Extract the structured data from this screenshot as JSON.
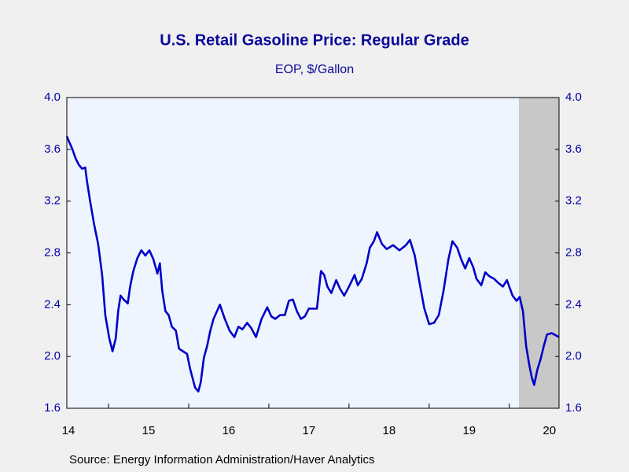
{
  "chart_data": {
    "type": "line",
    "title": "U.S. Retail Gasoline Price: Regular Grade",
    "subtitle": "EOP, $/Gallon",
    "source": "Source:  Energy Information Administration/Haver Analytics",
    "color": "#0000c8",
    "x": [
      2014.48,
      2014.55,
      2014.59,
      2014.63,
      2014.67,
      2014.71,
      2014.73,
      2014.77,
      2014.82,
      2014.87,
      2014.92,
      2014.96,
      2015.01,
      2015.05,
      2015.09,
      2015.12,
      2015.15,
      2015.19,
      2015.24,
      2015.27,
      2015.31,
      2015.36,
      2015.41,
      2015.46,
      2015.51,
      2015.56,
      2015.61,
      2015.64,
      2015.67,
      2015.71,
      2015.75,
      2015.79,
      2015.84,
      2015.88,
      2015.93,
      2015.98,
      2016.02,
      2016.08,
      2016.12,
      2016.15,
      2016.19,
      2016.23,
      2016.27,
      2016.31,
      2016.39,
      2016.45,
      2016.51,
      2016.57,
      2016.62,
      2016.67,
      2016.73,
      2016.78,
      2016.84,
      2016.91,
      2016.98,
      2017.03,
      2017.08,
      2017.14,
      2017.2,
      2017.25,
      2017.3,
      2017.35,
      2017.4,
      2017.45,
      2017.5,
      2017.6,
      2017.65,
      2017.69,
      2017.73,
      2017.78,
      2017.84,
      2017.89,
      2017.94,
      2018.0,
      2018.07,
      2018.11,
      2018.16,
      2018.22,
      2018.26,
      2018.31,
      2018.35,
      2018.41,
      2018.47,
      2018.55,
      2018.63,
      2018.71,
      2018.76,
      2018.82,
      2018.88,
      2018.94,
      2019.0,
      2019.06,
      2019.12,
      2019.18,
      2019.24,
      2019.29,
      2019.35,
      2019.4,
      2019.45,
      2019.5,
      2019.55,
      2019.59,
      2019.65,
      2019.7,
      2019.75,
      2019.81,
      2019.86,
      2019.92,
      2019.97,
      2020.04,
      2020.09,
      2020.13,
      2020.17,
      2020.21,
      2020.25,
      2020.28,
      2020.31,
      2020.35,
      2020.39,
      2020.43,
      2020.47,
      2020.53,
      2020.59,
      2020.62
    ],
    "values": [
      3.7,
      3.6,
      3.53,
      3.48,
      3.45,
      3.46,
      3.36,
      3.2,
      3.02,
      2.87,
      2.63,
      2.32,
      2.14,
      2.04,
      2.14,
      2.35,
      2.47,
      2.44,
      2.41,
      2.54,
      2.66,
      2.76,
      2.82,
      2.78,
      2.82,
      2.75,
      2.64,
      2.72,
      2.51,
      2.35,
      2.32,
      2.23,
      2.2,
      2.06,
      2.04,
      2.02,
      1.9,
      1.76,
      1.73,
      1.8,
      1.99,
      2.08,
      2.2,
      2.29,
      2.4,
      2.29,
      2.2,
      2.15,
      2.23,
      2.21,
      2.26,
      2.22,
      2.15,
      2.29,
      2.38,
      2.31,
      2.29,
      2.32,
      2.32,
      2.43,
      2.44,
      2.35,
      2.29,
      2.31,
      2.37,
      2.37,
      2.66,
      2.63,
      2.54,
      2.49,
      2.59,
      2.52,
      2.47,
      2.54,
      2.63,
      2.55,
      2.6,
      2.72,
      2.84,
      2.89,
      2.96,
      2.87,
      2.83,
      2.86,
      2.82,
      2.86,
      2.9,
      2.78,
      2.57,
      2.37,
      2.25,
      2.26,
      2.32,
      2.51,
      2.75,
      2.89,
      2.84,
      2.75,
      2.68,
      2.76,
      2.69,
      2.6,
      2.55,
      2.65,
      2.62,
      2.6,
      2.57,
      2.54,
      2.59,
      2.47,
      2.43,
      2.46,
      2.35,
      2.08,
      1.93,
      1.84,
      1.78,
      1.9,
      1.98,
      2.08,
      2.17,
      2.18,
      2.16,
      2.15
    ],
    "xlim": [
      2014.48,
      2020.62
    ],
    "xticks": [
      {
        "value": 2014.5,
        "label": "14"
      },
      {
        "value": 2015.5,
        "label": "15"
      },
      {
        "value": 2016.5,
        "label": "16"
      },
      {
        "value": 2017.5,
        "label": "17"
      },
      {
        "value": 2018.5,
        "label": "18"
      },
      {
        "value": 2019.5,
        "label": "19"
      },
      {
        "value": 2020.5,
        "label": "20"
      }
    ],
    "xtick_marks": [
      2015,
      2016,
      2017,
      2018,
      2019,
      2020
    ],
    "ylim": [
      1.6,
      4.0
    ],
    "yticks": [
      {
        "value": 1.6,
        "label": "1.6"
      },
      {
        "value": 2,
        "label": "2.0"
      },
      2.4,
      2.8,
      3.2,
      3.6,
      {
        "value": 4,
        "label": "4.0"
      }
    ],
    "shade": [
      2020.12,
      2020.62
    ],
    "shade_color": "#c8c8c8"
  }
}
